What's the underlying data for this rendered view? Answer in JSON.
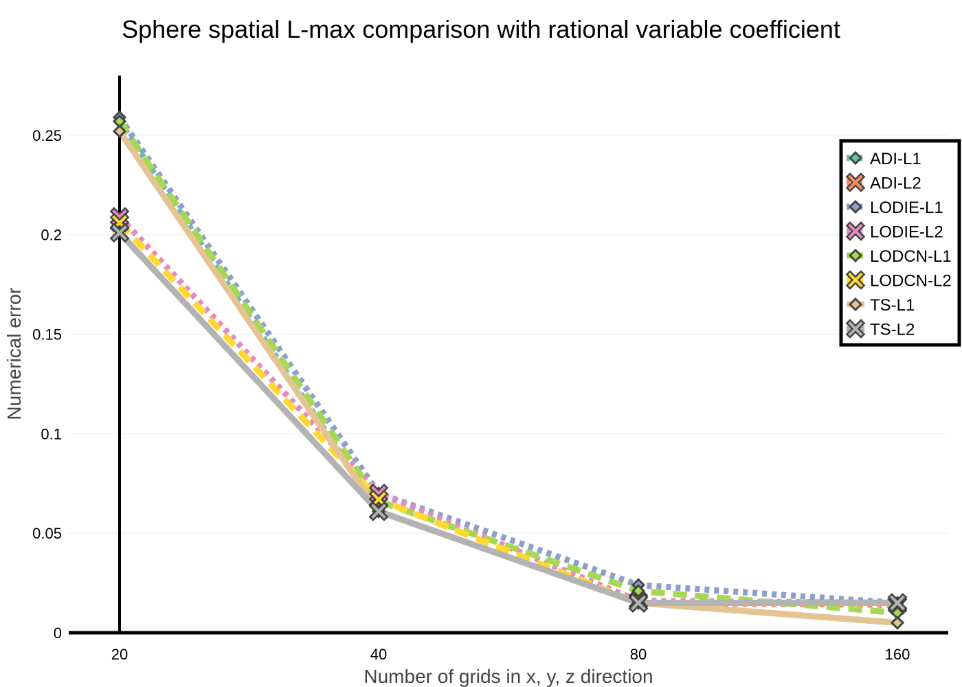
{
  "chart_data": {
    "type": "line",
    "title": "Sphere spatial L-max comparison with rational variable coefficient",
    "xlabel": "Number of grids in x, y, z direction",
    "ylabel": "Numerical error",
    "categories": [
      "20",
      "40",
      "80",
      "160"
    ],
    "ylim": [
      0,
      0.28
    ],
    "yticks": [
      0,
      0.05,
      0.1,
      0.15,
      0.2,
      0.25
    ],
    "ytick_labels": [
      "0",
      "0.05",
      "0.1",
      "0.15",
      "0.2",
      "0.25"
    ],
    "grid": true,
    "legend_position": "top-right",
    "series": [
      {
        "name": "ADI-L1",
        "values": [
          0.257,
          0.061,
          0.015,
          0.005
        ],
        "color": "#66c2a5",
        "dash": "dotted",
        "marker": "diamond"
      },
      {
        "name": "ADI-L2",
        "values": [
          0.201,
          0.061,
          0.015,
          0.014
        ],
        "color": "#fc8d62",
        "dash": "dotted",
        "marker": "x"
      },
      {
        "name": "LODIE-L1",
        "values": [
          0.259,
          0.07,
          0.024,
          0.015
        ],
        "color": "#8da0cb",
        "dash": "dotted",
        "marker": "diamond"
      },
      {
        "name": "LODIE-L2",
        "values": [
          0.209,
          0.07,
          0.016,
          0.015
        ],
        "color": "#e78ac3",
        "dash": "dotted",
        "marker": "x"
      },
      {
        "name": "LODCN-L1",
        "values": [
          0.257,
          0.066,
          0.021,
          0.01
        ],
        "color": "#a6d854",
        "dash": "dashed",
        "marker": "diamond"
      },
      {
        "name": "LODCN-L2",
        "values": [
          0.206,
          0.067,
          0.015,
          0.015
        ],
        "color": "#ffd92f",
        "dash": "dashed",
        "marker": "x"
      },
      {
        "name": "TS-L1",
        "values": [
          0.252,
          0.061,
          0.015,
          0.005
        ],
        "color": "#e5c494",
        "dash": "solid",
        "marker": "diamond"
      },
      {
        "name": "TS-L2",
        "values": [
          0.201,
          0.061,
          0.015,
          0.015
        ],
        "color": "#b3b3b3",
        "dash": "solid",
        "marker": "x"
      }
    ]
  }
}
